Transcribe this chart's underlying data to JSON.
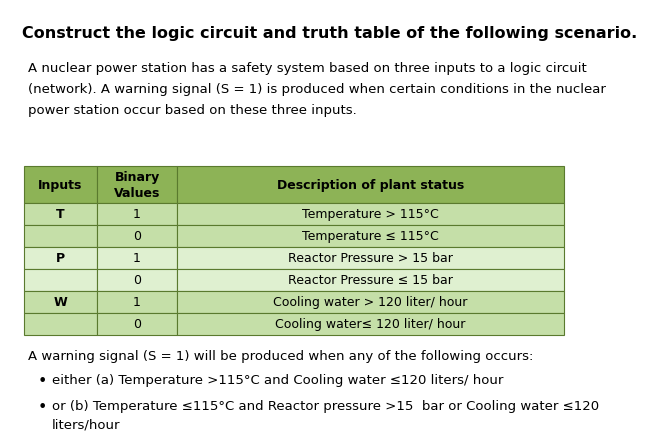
{
  "title": "Construct the logic circuit and truth table of the following scenario.",
  "intro_lines": [
    "A nuclear power station has a safety system based on three inputs to a logic circuit",
    "(network). A warning signal (S = 1) is produced when certain conditions in the nuclear",
    "power station occur based on these three inputs."
  ],
  "table_header": [
    "Inputs",
    "Binary\nValues",
    "Description of plant status"
  ],
  "table_rows": [
    [
      "T",
      "1",
      "Temperature > 115°C"
    ],
    [
      "",
      "0",
      "Temperature ≤ 115°C"
    ],
    [
      "P",
      "1",
      "Reactor Pressure > 15 bar"
    ],
    [
      "",
      "0",
      "Reactor Pressure ≤ 15 bar"
    ],
    [
      "W",
      "1",
      "Cooling water > 120 liter/ hour"
    ],
    [
      "",
      "0",
      "Cooling water≤ 120 liter/ hour"
    ]
  ],
  "warning_intro": "A warning signal (S = 1) will be produced when any of the following occurs:",
  "bullet1": "either (a) Temperature >115°C and Cooling water ≤120 liters/ hour",
  "bullet2_line1": "or (b) Temperature ≤115°C and Reactor pressure >15  bar or Cooling water ≤120",
  "bullet2_line2": "liters/hour",
  "header_bg": "#8db356",
  "row_odd_bg": "#c5dfa8",
  "row_even_bg": "#dff0d0",
  "border_color": "#5a7a2e",
  "title_fontsize": 11.5,
  "body_fontsize": 9.5,
  "table_fontsize": 9.0,
  "background_color": "#ffffff"
}
